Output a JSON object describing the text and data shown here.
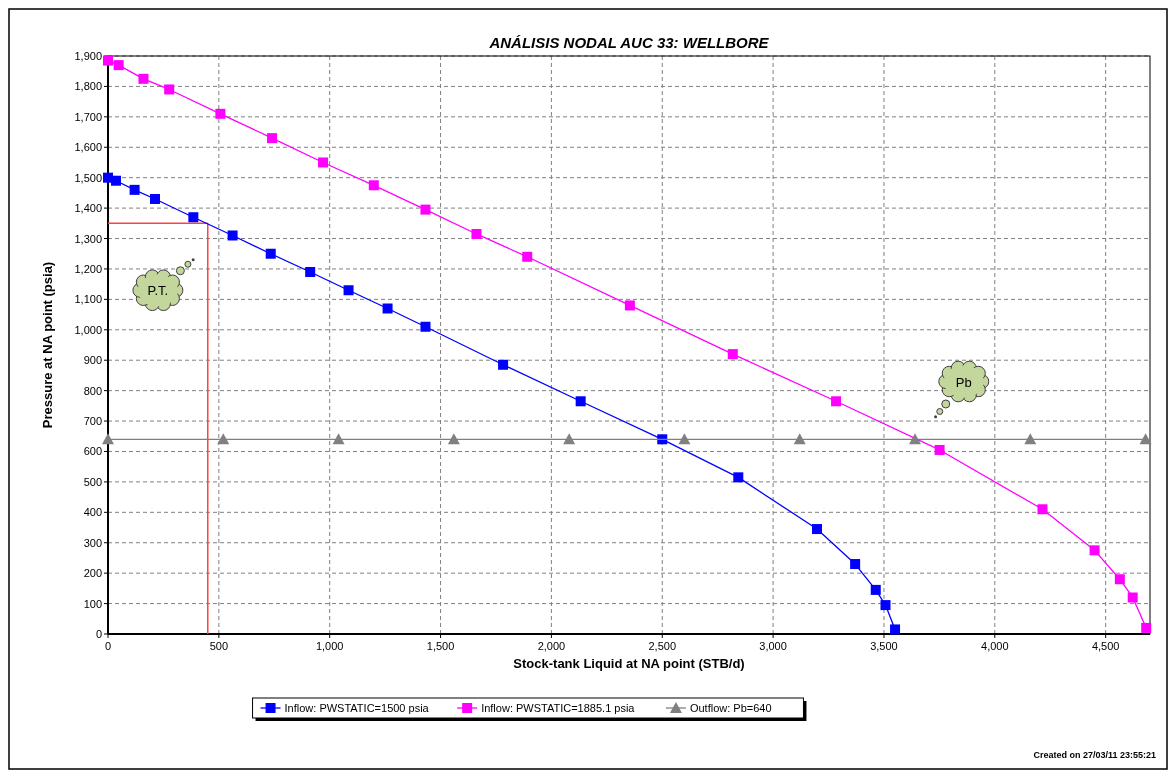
{
  "chart_data": {
    "type": "line",
    "title": "ANÁLISIS NODAL AUC 33: WELLBORE",
    "xlabel": "Stock-tank Liquid at NA point (STB/d)",
    "ylabel": "Pressure at NA point (psia)",
    "xlim": [
      0,
      4700
    ],
    "xticks": [
      0,
      500,
      {
        "value": 1000,
        "label": "1,000"
      },
      {
        "value": 1500,
        "label": "1,500"
      },
      {
        "value": 2000,
        "label": "2,000"
      },
      {
        "value": 2500,
        "label": "2,500"
      },
      {
        "value": 3000,
        "label": "3,000"
      },
      {
        "value": 3500,
        "label": "3,500"
      },
      {
        "value": 4000,
        "label": "4,000"
      },
      {
        "value": 4500,
        "label": "4,500"
      }
    ],
    "ylim": [
      0,
      1900
    ],
    "yticks": [
      0,
      100,
      200,
      300,
      400,
      500,
      600,
      700,
      800,
      900,
      {
        "value": 1000,
        "label": "1,000"
      },
      {
        "value": 1100,
        "label": "1,100"
      },
      {
        "value": 1200,
        "label": "1,200"
      },
      {
        "value": 1300,
        "label": "1,300"
      },
      {
        "value": 1400,
        "label": "1,400"
      },
      {
        "value": 1500,
        "label": "1,500"
      },
      {
        "value": 1600,
        "label": "1,600"
      },
      {
        "value": 1700,
        "label": "1,700"
      },
      {
        "value": 1800,
        "label": "1,800"
      },
      {
        "value": 1900,
        "label": "1,900"
      }
    ],
    "grid": true,
    "legend": "bottom",
    "line_style": "solid",
    "series": [
      {
        "name": "Inflow: PWSTATIC=1500 psia",
        "color": "#0000ff",
        "marker": "square",
        "x": [
          0,
          36,
          120,
          212,
          385,
          562,
          734,
          912,
          1085,
          1261,
          1432,
          1782,
          2132,
          2500,
          2843,
          3198,
          3370,
          3463,
          3507,
          3550
        ],
        "values": [
          1500,
          1490,
          1460,
          1430,
          1370,
          1310,
          1250,
          1190,
          1130,
          1070,
          1010,
          885,
          765,
          640,
          515,
          345,
          230,
          145,
          95,
          15
        ]
      },
      {
        "name": "Inflow: PWSTATIC=1885.1 psia",
        "color": "#ff00ff",
        "marker": "square",
        "x": [
          0,
          48,
          160,
          276,
          507,
          740,
          970,
          1199,
          1432,
          1662,
          1891,
          2354,
          2818,
          3284,
          3751,
          4215,
          4450,
          4564,
          4622,
          4683
        ],
        "values": [
          1885,
          1870,
          1825,
          1790,
          1710,
          1630,
          1550,
          1475,
          1395,
          1315,
          1240,
          1080,
          920,
          765,
          605,
          410,
          275,
          180,
          120,
          20
        ]
      },
      {
        "name": "Outflow: Pb=640",
        "color": "#808080",
        "marker": "triangle",
        "x": [
          0,
          520,
          1040,
          1560,
          2080,
          2600,
          3120,
          3640,
          4160,
          4680
        ],
        "values": [
          640,
          640,
          640,
          640,
          640,
          640,
          640,
          640,
          640,
          640
        ]
      }
    ],
    "ref_lines": [
      {
        "axis": "x",
        "value": 450,
        "color": "#ff4040"
      },
      {
        "axis": "y",
        "value": 1350,
        "color": "#ff4040"
      }
    ],
    "annotations": [
      {
        "text": "P.T.",
        "x": 225,
        "y": 1130
      },
      {
        "text": "Pb",
        "x": 3860,
        "y": 830
      },
      "Created on 27/03/11 23:55:21"
    ]
  }
}
